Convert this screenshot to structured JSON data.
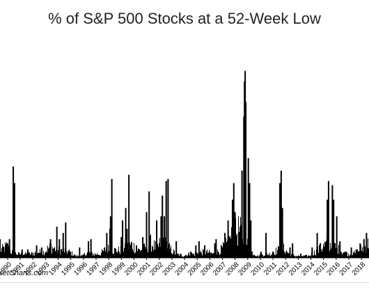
{
  "chart_data": {
    "type": "bar",
    "title": "% of S&P 500 Stocks at a 52-Week Low",
    "xlabel": "",
    "ylabel": "",
    "ylim": [
      0,
      100
    ],
    "grid": false,
    "legend": "none",
    "bar_color": "#000000",
    "tick_labels": [
      "1990",
      "1991",
      "1992",
      "1993",
      "1994",
      "1995",
      "1996",
      "1997",
      "1998",
      "1999",
      "2000",
      "2001",
      "2002",
      "2003",
      "2004",
      "2005",
      "2006",
      "2007",
      "2008",
      "2009",
      "2010",
      "2011",
      "2012",
      "2013",
      "2014",
      "2015",
      "2016",
      "2017",
      "2018"
    ],
    "x_range": [
      1989.4,
      2018.6
    ],
    "baseline": [
      [
        1989.4,
        4
      ],
      [
        1989.9,
        6
      ],
      [
        1990.3,
        3
      ],
      [
        1990.8,
        2
      ],
      [
        1991.3,
        2
      ],
      [
        1991.8,
        2
      ],
      [
        1992.3,
        3
      ],
      [
        1992.8,
        3
      ],
      [
        1993.4,
        6
      ],
      [
        1993.9,
        4
      ],
      [
        1994.4,
        4
      ],
      [
        1994.9,
        3
      ],
      [
        1995.4,
        1
      ],
      [
        1995.9,
        1
      ],
      [
        1996.3,
        3
      ],
      [
        1996.8,
        2
      ],
      [
        1997.3,
        2
      ],
      [
        1997.8,
        5
      ],
      [
        1998.3,
        4
      ],
      [
        1998.8,
        4
      ],
      [
        1999.3,
        5
      ],
      [
        1999.8,
        7
      ],
      [
        2000.3,
        4
      ],
      [
        2000.8,
        5
      ],
      [
        2001.3,
        8
      ],
      [
        2001.8,
        5
      ],
      [
        2002.3,
        10
      ],
      [
        2002.8,
        5
      ],
      [
        2003.3,
        2
      ],
      [
        2003.8,
        1
      ],
      [
        2004.3,
        2
      ],
      [
        2004.8,
        2
      ],
      [
        2005.3,
        3
      ],
      [
        2005.8,
        3
      ],
      [
        2006.3,
        2
      ],
      [
        2006.8,
        4
      ],
      [
        2007.3,
        7
      ],
      [
        2007.8,
        12
      ],
      [
        2008.3,
        15
      ],
      [
        2008.8,
        9
      ],
      [
        2009.3,
        3
      ],
      [
        2009.8,
        1
      ],
      [
        2010.3,
        2
      ],
      [
        2010.8,
        2
      ],
      [
        2011.3,
        4
      ],
      [
        2011.8,
        5
      ],
      [
        2012.3,
        2
      ],
      [
        2012.8,
        1
      ],
      [
        2013.3,
        1
      ],
      [
        2013.8,
        1
      ],
      [
        2014.3,
        3
      ],
      [
        2014.8,
        5
      ],
      [
        2015.3,
        8
      ],
      [
        2015.8,
        6
      ],
      [
        2016.3,
        4
      ],
      [
        2016.8,
        2
      ],
      [
        2017.3,
        2
      ],
      [
        2017.8,
        4
      ],
      [
        2018.3,
        6
      ],
      [
        2018.6,
        8
      ]
    ],
    "peaks": [
      [
        1989.4,
        9
      ],
      [
        1989.7,
        5
      ],
      [
        1990.0,
        7
      ],
      [
        1990.15,
        9
      ],
      [
        1990.45,
        44
      ],
      [
        1990.55,
        36
      ],
      [
        1991.15,
        4
      ],
      [
        1991.6,
        4
      ],
      [
        1992.3,
        6
      ],
      [
        1992.7,
        5
      ],
      [
        1993.4,
        9
      ],
      [
        1993.9,
        15
      ],
      [
        1994.1,
        9
      ],
      [
        1994.4,
        12
      ],
      [
        1994.6,
        17
      ],
      [
        1995.7,
        5
      ],
      [
        1996.4,
        8
      ],
      [
        1996.6,
        9
      ],
      [
        1997.85,
        12
      ],
      [
        1998.1,
        14
      ],
      [
        1998.15,
        20
      ],
      [
        1998.25,
        38
      ],
      [
        1999.0,
        10
      ],
      [
        1999.1,
        18
      ],
      [
        1999.35,
        24
      ],
      [
        1999.45,
        14
      ],
      [
        1999.6,
        40
      ],
      [
        2000.2,
        6
      ],
      [
        2000.7,
        10
      ],
      [
        2001.0,
        22
      ],
      [
        2001.2,
        32
      ],
      [
        2001.8,
        18
      ],
      [
        2002.15,
        20
      ],
      [
        2002.25,
        30
      ],
      [
        2002.4,
        20
      ],
      [
        2002.55,
        37
      ],
      [
        2002.7,
        38
      ],
      [
        2003.35,
        8
      ],
      [
        2003.7,
        2
      ],
      [
        2004.5,
        3
      ],
      [
        2004.9,
        6
      ],
      [
        2005.15,
        8
      ],
      [
        2005.6,
        6
      ],
      [
        2006.4,
        7
      ],
      [
        2006.5,
        9
      ],
      [
        2007.2,
        12
      ],
      [
        2007.45,
        18
      ],
      [
        2007.55,
        10
      ],
      [
        2007.8,
        28
      ],
      [
        2007.9,
        36
      ],
      [
        2008.0,
        22
      ],
      [
        2008.55,
        42
      ],
      [
        2008.7,
        68
      ],
      [
        2008.75,
        85
      ],
      [
        2008.8,
        90
      ],
      [
        2008.85,
        75
      ],
      [
        2009.05,
        48
      ],
      [
        2009.15,
        36
      ],
      [
        2009.25,
        18
      ],
      [
        2010.05,
        3
      ],
      [
        2010.45,
        12
      ],
      [
        2011.0,
        3
      ],
      [
        2011.55,
        36
      ],
      [
        2011.65,
        42
      ],
      [
        2011.75,
        24
      ],
      [
        2012.35,
        5
      ],
      [
        2012.55,
        7
      ],
      [
        2013.2,
        2
      ],
      [
        2014.1,
        5
      ],
      [
        2014.5,
        12
      ],
      [
        2014.75,
        7
      ],
      [
        2015.3,
        28
      ],
      [
        2015.4,
        37
      ],
      [
        2015.7,
        35
      ],
      [
        2015.8,
        28
      ],
      [
        2016.05,
        20
      ],
      [
        2016.3,
        8
      ],
      [
        2016.8,
        3
      ],
      [
        2017.2,
        5
      ],
      [
        2017.6,
        4
      ],
      [
        2017.9,
        7
      ],
      [
        2018.2,
        9
      ],
      [
        2018.4,
        12
      ]
    ]
  },
  "source": {
    "text": "retCharts.com"
  }
}
